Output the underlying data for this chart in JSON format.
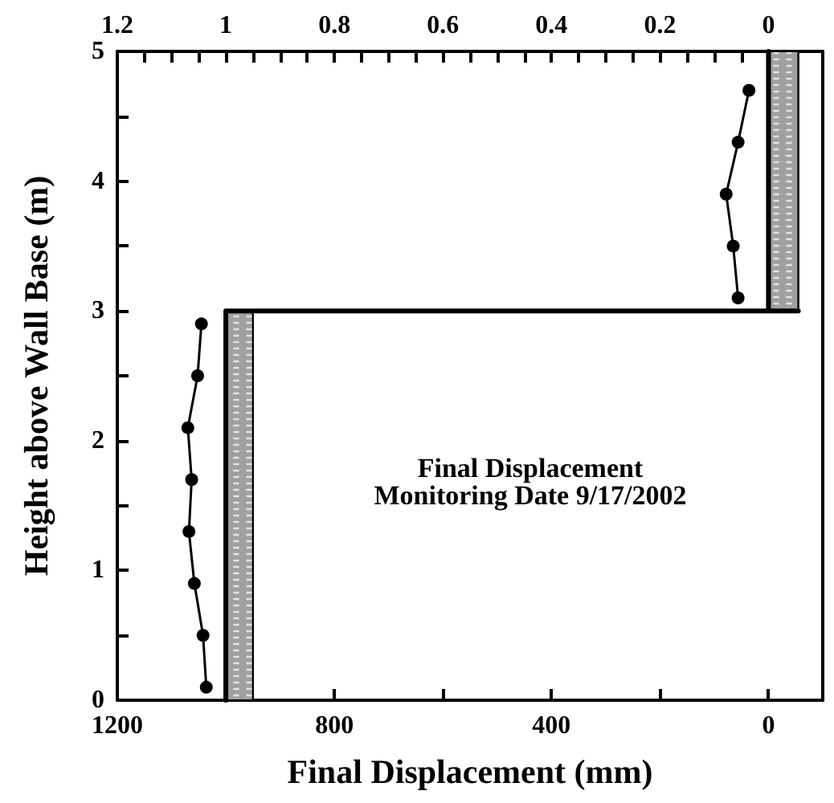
{
  "chart_data": {
    "type": "line",
    "xlabel": "Final Displacement (mm)",
    "ylabel": "Height above Wall Base (m)",
    "annotations": [
      "Final Displacement\nMonitoring Date 9/17/2002"
    ],
    "xlim": [
      1200,
      -100
    ],
    "xticks": [
      1200,
      {
        "value": 1000,
        "label": null
      },
      800,
      {
        "value": 600,
        "label": null
      },
      400,
      {
        "value": 200,
        "label": null
      },
      0
    ],
    "x2lim": [
      1.2,
      -0.1
    ],
    "x2ticks": [
      1.2,
      {
        "value": 1.15,
        "label": null
      },
      {
        "value": 1.1,
        "label": null
      },
      {
        "value": 1.05,
        "label": null
      },
      1,
      {
        "value": 0.95,
        "label": null
      },
      {
        "value": 0.9,
        "label": null
      },
      {
        "value": 0.85,
        "label": null
      },
      0.8,
      {
        "value": 0.75,
        "label": null
      },
      {
        "value": 0.7,
        "label": null
      },
      {
        "value": 0.65,
        "label": null
      },
      0.6,
      {
        "value": 0.55,
        "label": null
      },
      {
        "value": 0.5,
        "label": null
      },
      {
        "value": 0.45,
        "label": null
      },
      0.4,
      {
        "value": 0.35,
        "label": null
      },
      {
        "value": 0.3,
        "label": null
      },
      {
        "value": 0.25,
        "label": null
      },
      0.2,
      {
        "value": 0.15,
        "label": null
      },
      {
        "value": 0.1,
        "label": null
      },
      {
        "value": 0.05,
        "label": null
      },
      0
    ],
    "ylim": [
      0,
      5
    ],
    "yticks": [
      0,
      {
        "value": 0.5,
        "label": null
      },
      1,
      {
        "value": 1.5,
        "label": null
      },
      2,
      {
        "value": 2.5,
        "label": null
      },
      3,
      {
        "value": 3.5,
        "label": null
      },
      4,
      {
        "value": 4.5,
        "label": null
      },
      5
    ],
    "grid": false,
    "marker": "circle",
    "line_style": "solid",
    "series": [
      {
        "type": "area",
        "color": "#a0a0a0",
        "marker": "none",
        "x": [
          1000,
          950,
          950,
          1000
        ],
        "values": [
          0,
          0,
          3,
          3
        ]
      },
      {
        "type": "area",
        "color": "#a0a0a0",
        "marker": "none",
        "x": [
          0,
          -55,
          -55,
          0
        ],
        "values": [
          3,
          3,
          5,
          5
        ]
      },
      {
        "color": "#000000",
        "marker": "none",
        "x": [
          1000,
          1000,
          -55,
          0,
          0
        ],
        "values": [
          0,
          3,
          3,
          3,
          5
        ]
      },
      {
        "color": "#000000",
        "x": [
          1036,
          1042,
          1058,
          1068,
          1063,
          1070,
          1052,
          1045
        ],
        "values": [
          0.1,
          0.5,
          0.9,
          1.3,
          1.7,
          2.1,
          2.5,
          2.9
        ]
      },
      {
        "color": "#000000",
        "x": [
          56,
          65,
          78,
          56,
          36
        ],
        "values": [
          3.1,
          3.5,
          3.9,
          4.3,
          4.7
        ]
      }
    ]
  }
}
